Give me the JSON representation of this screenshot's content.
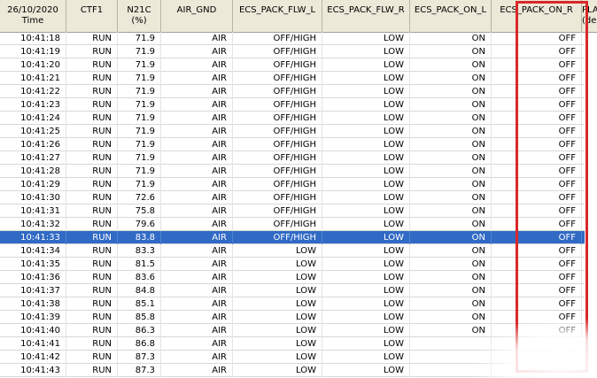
{
  "table": {
    "columns": [
      {
        "line1": "26/10/2020",
        "line2": "Time"
      },
      {
        "line1": "CTF1",
        "line2": ""
      },
      {
        "line1": "N21C",
        "line2": "(%)"
      },
      {
        "line1": "AIR_GND",
        "line2": ""
      },
      {
        "line1": "ECS_PACK_FLW_L",
        "line2": ""
      },
      {
        "line1": "ECS_PACK_FLW_R",
        "line2": ""
      },
      {
        "line1": "ECS_PACK_ON_L",
        "line2": ""
      },
      {
        "line1": "ECS_PACK_ON_R",
        "line2": ""
      },
      {
        "line1": "PLA",
        "line2": "(de"
      }
    ],
    "selected_row_index": 15,
    "rows": [
      [
        "10:41:18",
        "RUN",
        "71.9",
        "AIR",
        "OFF/HIGH",
        "LOW",
        "ON",
        "OFF"
      ],
      [
        "10:41:19",
        "RUN",
        "71.9",
        "AIR",
        "OFF/HIGH",
        "LOW",
        "ON",
        "OFF"
      ],
      [
        "10:41:20",
        "RUN",
        "71.9",
        "AIR",
        "OFF/HIGH",
        "LOW",
        "ON",
        "OFF"
      ],
      [
        "10:41:21",
        "RUN",
        "71.9",
        "AIR",
        "OFF/HIGH",
        "LOW",
        "ON",
        "OFF"
      ],
      [
        "10:41:22",
        "RUN",
        "71.9",
        "AIR",
        "OFF/HIGH",
        "LOW",
        "ON",
        "OFF"
      ],
      [
        "10:41:23",
        "RUN",
        "71.9",
        "AIR",
        "OFF/HIGH",
        "LOW",
        "ON",
        "OFF"
      ],
      [
        "10:41:24",
        "RUN",
        "71.9",
        "AIR",
        "OFF/HIGH",
        "LOW",
        "ON",
        "OFF"
      ],
      [
        "10:41:25",
        "RUN",
        "71.9",
        "AIR",
        "OFF/HIGH",
        "LOW",
        "ON",
        "OFF"
      ],
      [
        "10:41:26",
        "RUN",
        "71.9",
        "AIR",
        "OFF/HIGH",
        "LOW",
        "ON",
        "OFF"
      ],
      [
        "10:41:27",
        "RUN",
        "71.9",
        "AIR",
        "OFF/HIGH",
        "LOW",
        "ON",
        "OFF"
      ],
      [
        "10:41:28",
        "RUN",
        "71.9",
        "AIR",
        "OFF/HIGH",
        "LOW",
        "ON",
        "OFF"
      ],
      [
        "10:41:29",
        "RUN",
        "71.9",
        "AIR",
        "OFF/HIGH",
        "LOW",
        "ON",
        "OFF"
      ],
      [
        "10:41:30",
        "RUN",
        "72.6",
        "AIR",
        "OFF/HIGH",
        "LOW",
        "ON",
        "OFF"
      ],
      [
        "10:41:31",
        "RUN",
        "75.8",
        "AIR",
        "OFF/HIGH",
        "LOW",
        "ON",
        "OFF"
      ],
      [
        "10:41:32",
        "RUN",
        "79.6",
        "AIR",
        "OFF/HIGH",
        "LOW",
        "ON",
        "OFF"
      ],
      [
        "10:41:33",
        "RUN",
        "83.8",
        "AIR",
        "OFF/HIGH",
        "LOW",
        "ON",
        "OFF"
      ],
      [
        "10:41:34",
        "RUN",
        "83.3",
        "AIR",
        "LOW",
        "LOW",
        "ON",
        "OFF"
      ],
      [
        "10:41:35",
        "RUN",
        "81.5",
        "AIR",
        "LOW",
        "LOW",
        "ON",
        "OFF"
      ],
      [
        "10:41:36",
        "RUN",
        "83.6",
        "AIR",
        "LOW",
        "LOW",
        "ON",
        "OFF"
      ],
      [
        "10:41:37",
        "RUN",
        "84.8",
        "AIR",
        "LOW",
        "LOW",
        "ON",
        "OFF"
      ],
      [
        "10:41:38",
        "RUN",
        "85.1",
        "AIR",
        "LOW",
        "LOW",
        "ON",
        "OFF"
      ],
      [
        "10:41:39",
        "RUN",
        "85.8",
        "AIR",
        "LOW",
        "LOW",
        "ON",
        "OFF"
      ],
      [
        "10:41:40",
        "RUN",
        "86.3",
        "AIR",
        "LOW",
        "LOW",
        "ON",
        "OFF"
      ],
      [
        "10:41:41",
        "RUN",
        "86.8",
        "AIR",
        "LOW",
        "LOW",
        "",
        ""
      ],
      [
        "10:41:42",
        "RUN",
        "87.3",
        "AIR",
        "LOW",
        "LOW",
        "",
        ""
      ],
      [
        "10:41:43",
        "RUN",
        "87.3",
        "AIR",
        "LOW",
        "LOW",
        "",
        ""
      ]
    ]
  },
  "annotation": {
    "highlight_color": "#d9282a"
  },
  "colors": {
    "header_bg": "#ece9d8",
    "selection_bg": "#316ac5"
  }
}
